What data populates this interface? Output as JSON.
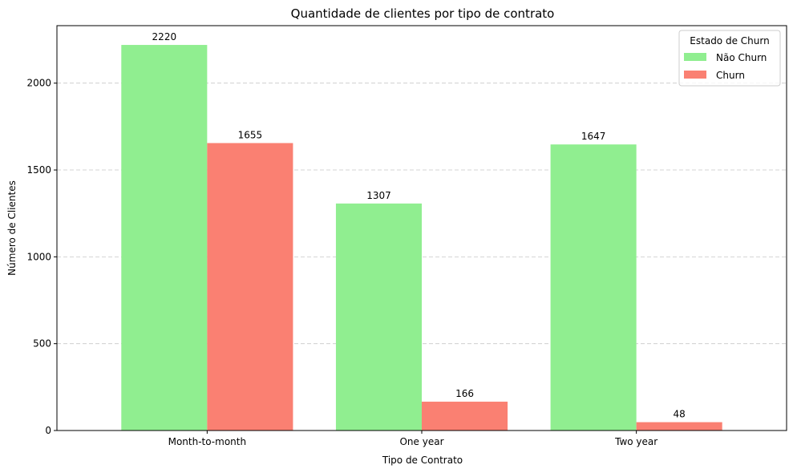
{
  "chart_data": {
    "type": "bar",
    "title": "Quantidade de clientes por tipo de contrato",
    "xlabel": "Tipo de Contrato",
    "ylabel": "Número de Clientes",
    "categories": [
      "Month-to-month",
      "One year",
      "Two year"
    ],
    "series": [
      {
        "name": "Não Churn",
        "values": [
          2220,
          1307,
          1647
        ],
        "color": "#90ee90"
      },
      {
        "name": "Churn",
        "values": [
          1655,
          166,
          48
        ],
        "color": "#fa8072"
      }
    ],
    "ylim": [
      0,
      2331
    ],
    "yticks": [
      0,
      500,
      1000,
      1500,
      2000
    ],
    "grid": "y-dashed",
    "legend": {
      "title": "Estado de Churn",
      "position": "top-right"
    }
  }
}
